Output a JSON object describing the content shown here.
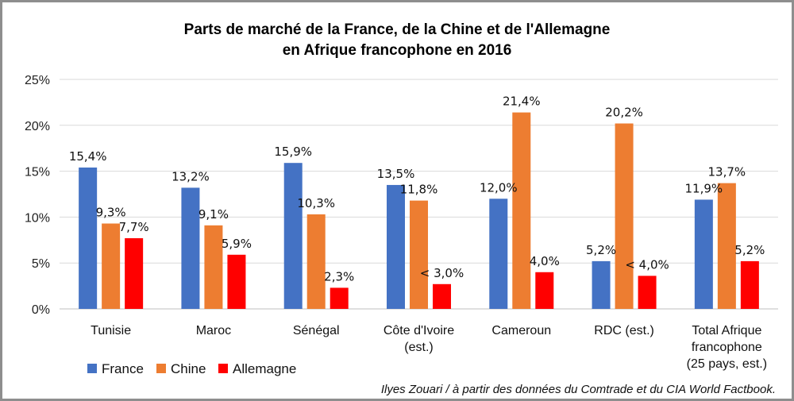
{
  "chart_data": {
    "type": "bar",
    "title": [
      "Parts de marché de la France, de la Chine et de l'Allemagne",
      "en Afrique francophone  en 2016"
    ],
    "categories": [
      [
        "Tunisie"
      ],
      [
        "Maroc"
      ],
      [
        "Sénégal"
      ],
      [
        "Côte d'Ivoire",
        "(est.)"
      ],
      [
        "Cameroun"
      ],
      [
        "RDC (est.)"
      ],
      [
        "Total Afrique",
        "francophone",
        "(25 pays, est.)"
      ]
    ],
    "series": [
      {
        "name": "France",
        "color": "#4472c4",
        "values": [
          15.4,
          13.2,
          15.9,
          13.5,
          12.0,
          5.2,
          11.9
        ],
        "labels": [
          "15,4%",
          "13,2%",
          "15,9%",
          "13,5%",
          "12,0%",
          "5,2%",
          "11,9%"
        ]
      },
      {
        "name": "Chine",
        "color": "#ed7d31",
        "values": [
          9.3,
          9.1,
          10.3,
          11.8,
          21.4,
          20.2,
          13.7
        ],
        "labels": [
          "9,3%",
          "9,1%",
          "10,3%",
          "11,8%",
          "21,4%",
          "20,2%",
          "13,7%"
        ]
      },
      {
        "name": "Allemagne",
        "color": "#ff0000",
        "values": [
          7.7,
          5.9,
          2.3,
          2.7,
          4.0,
          3.6,
          5.2
        ],
        "labels": [
          "7,7%",
          "5,9%",
          "2,3%",
          "< 3,0%",
          "4,0%",
          "< 4,0%",
          "5,2%"
        ]
      }
    ],
    "ylim": [
      0,
      25
    ],
    "yticks": [
      0,
      5,
      10,
      15,
      20,
      25
    ],
    "ytick_labels": [
      "0%",
      "5%",
      "10%",
      "15%",
      "20%",
      "25%"
    ],
    "xlabel": "",
    "ylabel": "",
    "grid": true,
    "legend_position": "bottom-left",
    "source": "Ilyes Zouari / à partir des données du Comtrade et du CIA World Factbook."
  }
}
